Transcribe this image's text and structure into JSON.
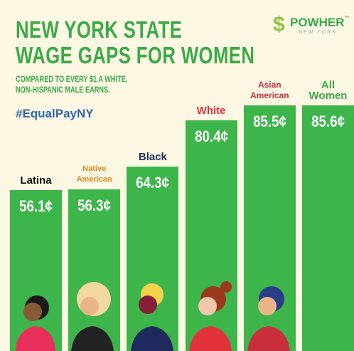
{
  "chart_data": {
    "type": "bar",
    "title": [
      "NEW YORK STATE",
      "WAGE GAPS FOR WOMEN"
    ],
    "subtitle": [
      "COMPARED TO EVERY $1 A WHITE,",
      "NON-HISPANIC MALE EARNS."
    ],
    "annotation": "#EqualPayNY",
    "categories": [
      "Latina",
      "Native American",
      "Black",
      "White",
      "Asian American",
      "All Women"
    ],
    "category_colors": [
      "#111111",
      "#e0891f",
      "#1f2a5c",
      "#e2323c",
      "#c9303c",
      "#3aaa48"
    ],
    "values": [
      56.1,
      56.3,
      64.3,
      80.4,
      85.5,
      85.6
    ],
    "value_labels": [
      "56.1¢",
      "56.3¢",
      "64.3¢",
      "80.4¢",
      "85.5¢",
      "85.6¢"
    ],
    "color": "#3db54b"
  },
  "logo": {
    "name": "POWHER",
    "mark": "™",
    "region": "NEW YORK"
  }
}
